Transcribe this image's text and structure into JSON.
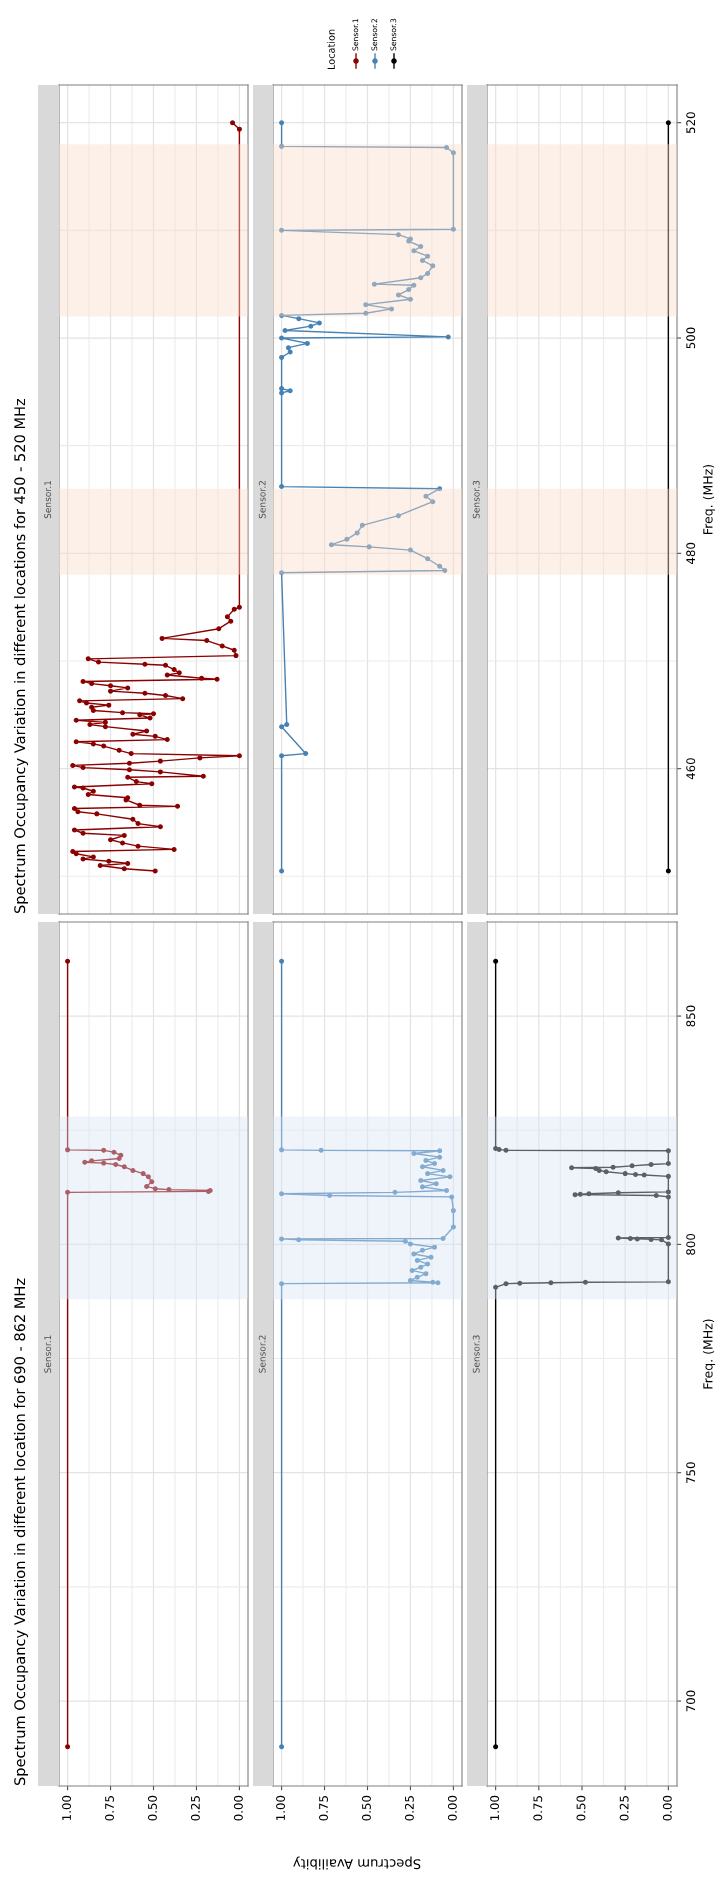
{
  "chart_data": [
    {
      "type": "line",
      "orientation": "horizontal",
      "title": "Spectrum Occupancy Variation in different locations for 450 - 520 MHz",
      "legend": "right",
      "legend_title": "Location",
      "xlim": [
        1.05,
        -0.05
      ],
      "xticks": [
        {
          "value": 1,
          "label": "1.00"
        },
        {
          "value": 0.875,
          "label": null
        },
        {
          "value": 0.75,
          "label": "0.75"
        },
        {
          "value": 0.625,
          "label": null
        },
        {
          "value": 0.5,
          "label": "0.50"
        },
        {
          "value": 0.375,
          "label": null
        },
        {
          "value": 0.25,
          "label": "0.25"
        },
        {
          "value": 0.125,
          "label": null
        },
        {
          "value": 0,
          "label": "0.00"
        }
      ],
      "ylim": [
        446.5,
        523.5
      ],
      "yticks": [
        {
          "value": 450,
          "label": null
        },
        460,
        {
          "value": 470,
          "label": null
        },
        480,
        {
          "value": 490,
          "label": null
        },
        500,
        {
          "value": 510,
          "label": null
        },
        520
      ],
      "tick_labels": false,
      "grid": true,
      "marker": "circle",
      "bands": [
        {
          "axis": "y",
          "from": 478,
          "to": 486,
          "color": "#fadcc8"
        },
        {
          "axis": "y",
          "from": 502,
          "to": 510,
          "color": "#fadcc8"
        },
        {
          "axis": "y",
          "from": 510,
          "to": 518,
          "color": "#fadcc8"
        }
      ],
      "series": [
        {
          "name": "Sensor.1",
          "color": "#8b0000",
          "x": [
            450.5,
            450.7,
            451.0,
            451.2,
            451.4,
            451.6,
            451.8,
            452.1,
            452.3,
            452.5,
            452.8,
            453.1,
            453.4,
            453.8,
            454.0,
            454.3,
            454.6,
            454.9,
            455.3,
            455.8,
            456.0,
            456.3,
            456.5,
            456.6,
            457.1,
            457.3,
            457.6,
            457.9,
            458.2,
            458.3,
            458.6,
            458.8,
            459.2,
            459.3,
            459.7,
            459.9,
            460.1,
            460.3,
            460.5,
            460.7,
            461.0,
            461.2,
            461.4,
            461.7,
            462.1,
            462.3,
            462.5,
            462.7,
            463.0,
            463.2,
            463.5,
            463.9,
            464.1,
            464.3,
            464.5,
            464.7,
            465.0,
            465.1,
            465.2,
            465.4,
            465.7,
            465.9,
            466.1,
            466.3,
            466.5,
            466.8,
            467.0,
            467.2,
            467.5,
            467.7,
            467.9,
            468.1,
            468.3,
            468.4,
            468.7,
            468.9,
            469.2,
            469.6,
            469.7,
            469.9,
            470.2,
            470.5,
            471.0,
            471.4,
            471.9,
            472.1,
            473.0,
            473.7,
            474.1,
            474.8,
            475.0,
            519.4,
            520.0
          ],
          "values": [
            0.49,
            0.67,
            0.81,
            0.65,
            0.76,
            0.91,
            0.85,
            0.95,
            0.97,
            0.38,
            0.59,
            0.68,
            0.75,
            0.67,
            0.91,
            0.96,
            0.46,
            0.59,
            0.62,
            0.83,
            0.94,
            0.96,
            0.36,
            0.58,
            0.66,
            0.65,
            0.88,
            0.85,
            0.91,
            0.96,
            0.51,
            0.6,
            0.65,
            0.21,
            0.46,
            0.64,
            0.91,
            0.97,
            0.64,
            0.46,
            0.23,
            0.0,
            0.63,
            0.7,
            0.79,
            0.85,
            0.95,
            0.42,
            0.49,
            0.62,
            0.54,
            0.78,
            0.87,
            0.78,
            0.95,
            0.52,
            0.58,
            0.5,
            0.68,
            0.85,
            0.86,
            0.76,
            0.89,
            0.93,
            0.33,
            0.43,
            0.55,
            0.75,
            0.65,
            0.75,
            0.86,
            0.91,
            0.13,
            0.22,
            0.42,
            0.35,
            0.38,
            0.43,
            0.55,
            0.82,
            0.88,
            0.02,
            0.03,
            0.1,
            0.19,
            0.45,
            0.12,
            0.05,
            0.07,
            0.03,
            0.0,
            0.0,
            0.04
          ]
        }
      ]
    },
    {
      "type": "line",
      "orientation": "horizontal",
      "xlim": [
        1.05,
        -0.05
      ],
      "xticks": [
        {
          "value": 1,
          "label": "1.00"
        },
        {
          "value": 0.875,
          "label": null
        },
        {
          "value": 0.75,
          "label": "0.75"
        },
        {
          "value": 0.625,
          "label": null
        },
        {
          "value": 0.5,
          "label": "0.50"
        },
        {
          "value": 0.375,
          "label": null
        },
        {
          "value": 0.25,
          "label": "0.25"
        },
        {
          "value": 0.125,
          "label": null
        },
        {
          "value": 0,
          "label": "0.00"
        }
      ],
      "ylim": [
        446.5,
        523.5
      ],
      "yticks": [
        {
          "value": 450,
          "label": null
        },
        460,
        {
          "value": 470,
          "label": null
        },
        480,
        {
          "value": 490,
          "label": null
        },
        500,
        {
          "value": 510,
          "label": null
        },
        520
      ],
      "tick_labels": false,
      "grid": true,
      "marker": "circle",
      "bands": [
        {
          "axis": "y",
          "from": 478,
          "to": 486,
          "color": "#fadcc8"
        },
        {
          "axis": "y",
          "from": 502,
          "to": 510,
          "color": "#fadcc8"
        },
        {
          "axis": "y",
          "from": 510,
          "to": 518,
          "color": "#fadcc8"
        }
      ],
      "series": [
        {
          "name": "Sensor.2",
          "color": "#4682b4",
          "x": [
            450.5,
            461.2,
            461.4,
            463.9,
            464.1,
            478.2,
            478.4,
            478.8,
            479.5,
            480.3,
            480.6,
            480.8,
            481.3,
            481.9,
            482.6,
            483.5,
            484.8,
            485.3,
            486.0,
            486.2,
            494.9,
            495.1,
            495.3,
            498.2,
            498.7,
            499.1,
            499.5,
            500.0,
            500.1,
            500.7,
            501.1,
            501.4,
            501.8,
            502.1,
            502.3,
            502.7,
            503.1,
            503.6,
            504.0,
            504.5,
            504.9,
            505.0,
            505.6,
            506.0,
            506.7,
            507.2,
            507.6,
            508.1,
            508.5,
            509.0,
            509.2,
            509.6,
            510.0,
            510.1,
            517.2,
            517.7,
            517.8,
            520.0
          ],
          "values": [
            1.0,
            1.0,
            0.86,
            1.0,
            0.97,
            1.0,
            0.05,
            0.08,
            0.15,
            0.25,
            0.49,
            0.71,
            0.62,
            0.56,
            0.53,
            0.32,
            0.12,
            0.16,
            0.08,
            1.0,
            1.0,
            0.95,
            1.0,
            1.0,
            0.95,
            0.96,
            0.85,
            1.0,
            0.03,
            0.98,
            0.83,
            0.78,
            0.9,
            1.0,
            0.51,
            0.36,
            0.51,
            0.25,
            0.32,
            0.26,
            0.23,
            0.46,
            0.19,
            0.15,
            0.12,
            0.18,
            0.15,
            0.23,
            0.19,
            0.26,
            0.25,
            0.32,
            1.0,
            0.0,
            0.0,
            0.04,
            1.0,
            1.0
          ]
        }
      ]
    },
    {
      "type": "line",
      "orientation": "horizontal",
      "ylabel": "Freq. (MHz)",
      "xlim": [
        1.05,
        -0.05
      ],
      "xticks": [
        {
          "value": 1,
          "label": "1.00"
        },
        {
          "value": 0.875,
          "label": null
        },
        {
          "value": 0.75,
          "label": "0.75"
        },
        {
          "value": 0.625,
          "label": null
        },
        {
          "value": 0.5,
          "label": "0.50"
        },
        {
          "value": 0.375,
          "label": null
        },
        {
          "value": 0.25,
          "label": "0.25"
        },
        {
          "value": 0.125,
          "label": null
        },
        {
          "value": 0,
          "label": "0.00"
        }
      ],
      "ylim": [
        446.5,
        523.5
      ],
      "yticks": [
        {
          "value": 450,
          "label": null
        },
        460,
        {
          "value": 470,
          "label": null
        },
        480,
        {
          "value": 490,
          "label": null
        },
        500,
        {
          "value": 510,
          "label": null
        },
        520
      ],
      "tick_labels": "y",
      "grid": true,
      "marker": "circle",
      "bands": [
        {
          "axis": "y",
          "from": 478,
          "to": 486,
          "color": "#fadcc8"
        },
        {
          "axis": "y",
          "from": 502,
          "to": 510,
          "color": "#fadcc8"
        },
        {
          "axis": "y",
          "from": 510,
          "to": 518,
          "color": "#fadcc8"
        }
      ],
      "series": [
        {
          "name": "Sensor.3",
          "color": "#000000",
          "x": [
            450.5,
            520
          ],
          "values": [
            0.0,
            0.0
          ]
        }
      ]
    },
    {
      "type": "line",
      "orientation": "horizontal",
      "title": "Spectrum Occupancy Variation in different location for 690 - 862 MHz",
      "xlabel": "Spectrum Availibity",
      "xlim": [
        1.05,
        -0.05
      ],
      "xticks": [
        {
          "value": 1,
          "label": "1.00"
        },
        {
          "value": 0.875,
          "label": null
        },
        {
          "value": 0.75,
          "label": "0.75"
        },
        {
          "value": 0.625,
          "label": null
        },
        {
          "value": 0.5,
          "label": "0.50"
        },
        {
          "value": 0.375,
          "label": null
        },
        {
          "value": 0.25,
          "label": "0.25"
        },
        {
          "value": 0.125,
          "label": null
        },
        {
          "value": 0,
          "label": "0.00"
        }
      ],
      "ylim": [
        681.4,
        870.6
      ],
      "yticks": [
        700,
        {
          "value": 725,
          "label": null
        },
        750,
        {
          "value": 775,
          "label": null
        },
        800,
        {
          "value": 825,
          "label": null
        },
        850
      ],
      "tick_labels": "x",
      "grid": true,
      "marker": "circle",
      "bands": [
        {
          "axis": "y",
          "from": 788,
          "to": 828,
          "color": "#d8e4f5"
        }
      ],
      "series": [
        {
          "name": "Sensor.1",
          "color": "#8b0000",
          "x": [
            690,
            811.4,
            811.6,
            811.8,
            812.0,
            812.2,
            812.7,
            813.7,
            814.8,
            815.5,
            816.2,
            817.0,
            817.5,
            817.8,
            818.0,
            818.3,
            818.8,
            819.5,
            820.2,
            820.6,
            820.7,
            862
          ],
          "values": [
            1.0,
            1.0,
            0.18,
            0.17,
            0.41,
            0.49,
            0.54,
            0.51,
            0.53,
            0.56,
            0.62,
            0.67,
            0.72,
            0.79,
            0.9,
            0.86,
            0.7,
            0.69,
            0.73,
            0.79,
            1.0,
            1.0
          ]
        }
      ]
    },
    {
      "type": "line",
      "orientation": "horizontal",
      "xlim": [
        1.05,
        -0.05
      ],
      "xticks": [
        {
          "value": 1,
          "label": "1.00"
        },
        {
          "value": 0.875,
          "label": null
        },
        {
          "value": 0.75,
          "label": "0.75"
        },
        {
          "value": 0.625,
          "label": null
        },
        {
          "value": 0.5,
          "label": "0.50"
        },
        {
          "value": 0.375,
          "label": null
        },
        {
          "value": 0.25,
          "label": "0.25"
        },
        {
          "value": 0.125,
          "label": null
        },
        {
          "value": 0,
          "label": "0.00"
        }
      ],
      "ylim": [
        681.4,
        870.6
      ],
      "yticks": [
        700,
        {
          "value": 725,
          "label": null
        },
        750,
        {
          "value": 775,
          "label": null
        },
        800,
        {
          "value": 825,
          "label": null
        },
        850
      ],
      "tick_labels": "x",
      "grid": true,
      "marker": "circle",
      "bands": [
        {
          "axis": "y",
          "from": 788,
          "to": 828,
          "color": "#d8e4f5"
        }
      ],
      "series": [
        {
          "name": "Sensor.2",
          "color": "#4682b4",
          "x": [
            690,
            791.4,
            791.6,
            791.7,
            792.1,
            792.8,
            793.6,
            794.3,
            795.0,
            795.7,
            796.5,
            797.2,
            797.9,
            798.7,
            799.4,
            800.1,
            800.7,
            801.0,
            801.2,
            801.3,
            803.8,
            807.4,
            810.4,
            810.7,
            811.1,
            811.4,
            811.8,
            812.6,
            813.3,
            814.0,
            814.8,
            815.5,
            816.2,
            817.0,
            817.7,
            818.4,
            819.1,
            819.9,
            820.5,
            820.6,
            820.7,
            862
          ],
          "values": [
            1.0,
            1.0,
            0.09,
            0.12,
            0.25,
            0.21,
            0.16,
            0.24,
            0.19,
            0.15,
            0.21,
            0.13,
            0.23,
            0.18,
            0.11,
            0.25,
            0.28,
            0.9,
            1.0,
            0.06,
            0.0,
            0.0,
            0.01,
            0.72,
            1.0,
            0.34,
            0.04,
            0.18,
            0.1,
            0.19,
            0.02,
            0.15,
            0.06,
            0.18,
            0.11,
            0.16,
            0.08,
            0.23,
            0.08,
            0.77,
            1.0,
            1.0
          ]
        }
      ]
    },
    {
      "type": "line",
      "orientation": "horizontal",
      "ylabel": "Freq. (MHz)",
      "xlim": [
        1.05,
        -0.05
      ],
      "xticks": [
        {
          "value": 1,
          "label": "1.00"
        },
        {
          "value": 0.875,
          "label": null
        },
        {
          "value": 0.75,
          "label": "0.75"
        },
        {
          "value": 0.625,
          "label": null
        },
        {
          "value": 0.5,
          "label": "0.50"
        },
        {
          "value": 0.375,
          "label": null
        },
        {
          "value": 0.25,
          "label": "0.25"
        },
        {
          "value": 0.125,
          "label": null
        },
        {
          "value": 0,
          "label": "0.00"
        }
      ],
      "ylim": [
        681.4,
        870.6
      ],
      "yticks": [
        700,
        {
          "value": 725,
          "label": null
        },
        750,
        {
          "value": 775,
          "label": null
        },
        800,
        {
          "value": 825,
          "label": null
        },
        850
      ],
      "grid": true,
      "marker": "circle",
      "bands": [
        {
          "axis": "y",
          "from": 788,
          "to": 828,
          "color": "#d8e4f5"
        }
      ],
      "series": [
        {
          "name": "Sensor.3",
          "color": "#000000",
          "x": [
            690,
            790.6,
            791.4,
            791.5,
            791.6,
            791.7,
            791.8,
            800.1,
            801.0,
            801.1,
            801.2,
            801.3,
            801.4,
            801.5,
            810.4,
            810.7,
            810.9,
            811.0,
            811.1,
            811.3,
            811.5,
            814.9,
            815.2,
            815.3,
            815.5,
            815.9,
            816.2,
            816.6,
            816.8,
            816.9,
            817.2,
            817.5,
            817.7,
            820.5,
            820.6,
            820.8,
            821.0,
            862
          ],
          "values": [
            1.0,
            1.0,
            0.94,
            0.86,
            0.68,
            0.48,
            0.0,
            0.0,
            0.04,
            0.1,
            0.18,
            0.22,
            0.29,
            0.0,
            0.0,
            0.07,
            0.54,
            0.51,
            0.46,
            0.29,
            0.0,
            0.0,
            0.14,
            0.19,
            0.25,
            0.36,
            0.4,
            0.42,
            0.56,
            0.32,
            0.21,
            0.1,
            0.0,
            0.0,
            0.94,
            0.98,
            1.0,
            1.0
          ]
        }
      ]
    }
  ]
}
